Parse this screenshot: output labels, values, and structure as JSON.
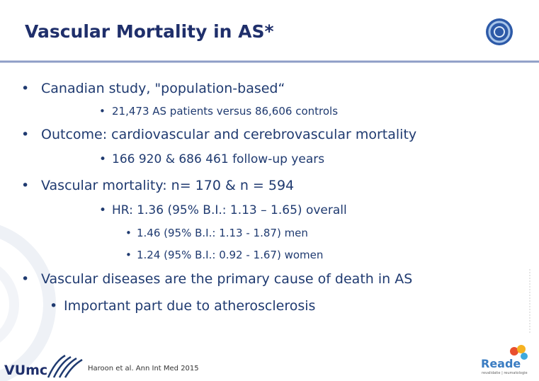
{
  "header": {
    "title": "Vascular Mortality in AS*"
  },
  "bullets": [
    "Canadian study, \"population-based“",
    "21,473 AS patients versus 86,606 controls",
    "Outcome: cardiovascular and cerebrovascular mortality",
    "166 920 & 686 461 follow-up years",
    "Vascular mortality: n= 170 & n = 594",
    "HR: 1.36 (95% B.I.: 1.13 – 1.65) overall",
    "1.46 (95% B.I.: 1.13 - 1.87) men",
    "1.24 (95% B.I.: 0.92 - 1.67) women",
    "Vascular diseases are the primary cause of death in AS",
    "Important part due to atherosclerosis"
  ],
  "footer": {
    "citation": "Haroon et al. Ann Int Med 2015",
    "left_logo": "VUmc",
    "right_logo": "Reade",
    "right_logo_tagline": "revalidatie | reumatologie"
  }
}
